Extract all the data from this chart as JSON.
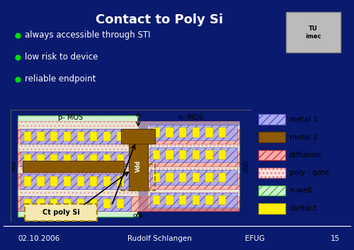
{
  "title": "Contact to Poly Si",
  "bg_color": "#0a1a6e",
  "bullet_color": "#00dd00",
  "bullets": [
    "always accessible through STI",
    "low risk to device",
    "reliable endpoint"
  ],
  "footer_left": "02.10.2006",
  "footer_center": "Rudolf Schlangen",
  "footer_right": "EFUG",
  "footer_num": "15",
  "diagram_bg": "#f0f0f0",
  "nwell_color": "#d0f0d0",
  "nwell_edge": "#44bb44",
  "metal1_color": "#aaaaee",
  "metal1_edge": "#5555cc",
  "metal2_color": "#8B5a00",
  "metal2_dark": "#5a3200",
  "diff_color": "#ffaaaa",
  "diff_edge": "#cc3333",
  "polygate_color": "#ffdddd",
  "polygate_edge": "#dd7777",
  "contact_color": "#ffee00",
  "contact_edge": "#aaaa00",
  "legend_labels": [
    "metal 1",
    "metal 2",
    "diffusion",
    "poly - gate",
    "n-well",
    "contact"
  ],
  "legend_colors": [
    "#aaaaee",
    "#8B5a00",
    "#ffaaaa",
    "#ffdddd",
    "#d0f0d0",
    "#ffee00"
  ],
  "legend_hatches": [
    "///",
    "",
    "///",
    "...",
    "///",
    ""
  ]
}
